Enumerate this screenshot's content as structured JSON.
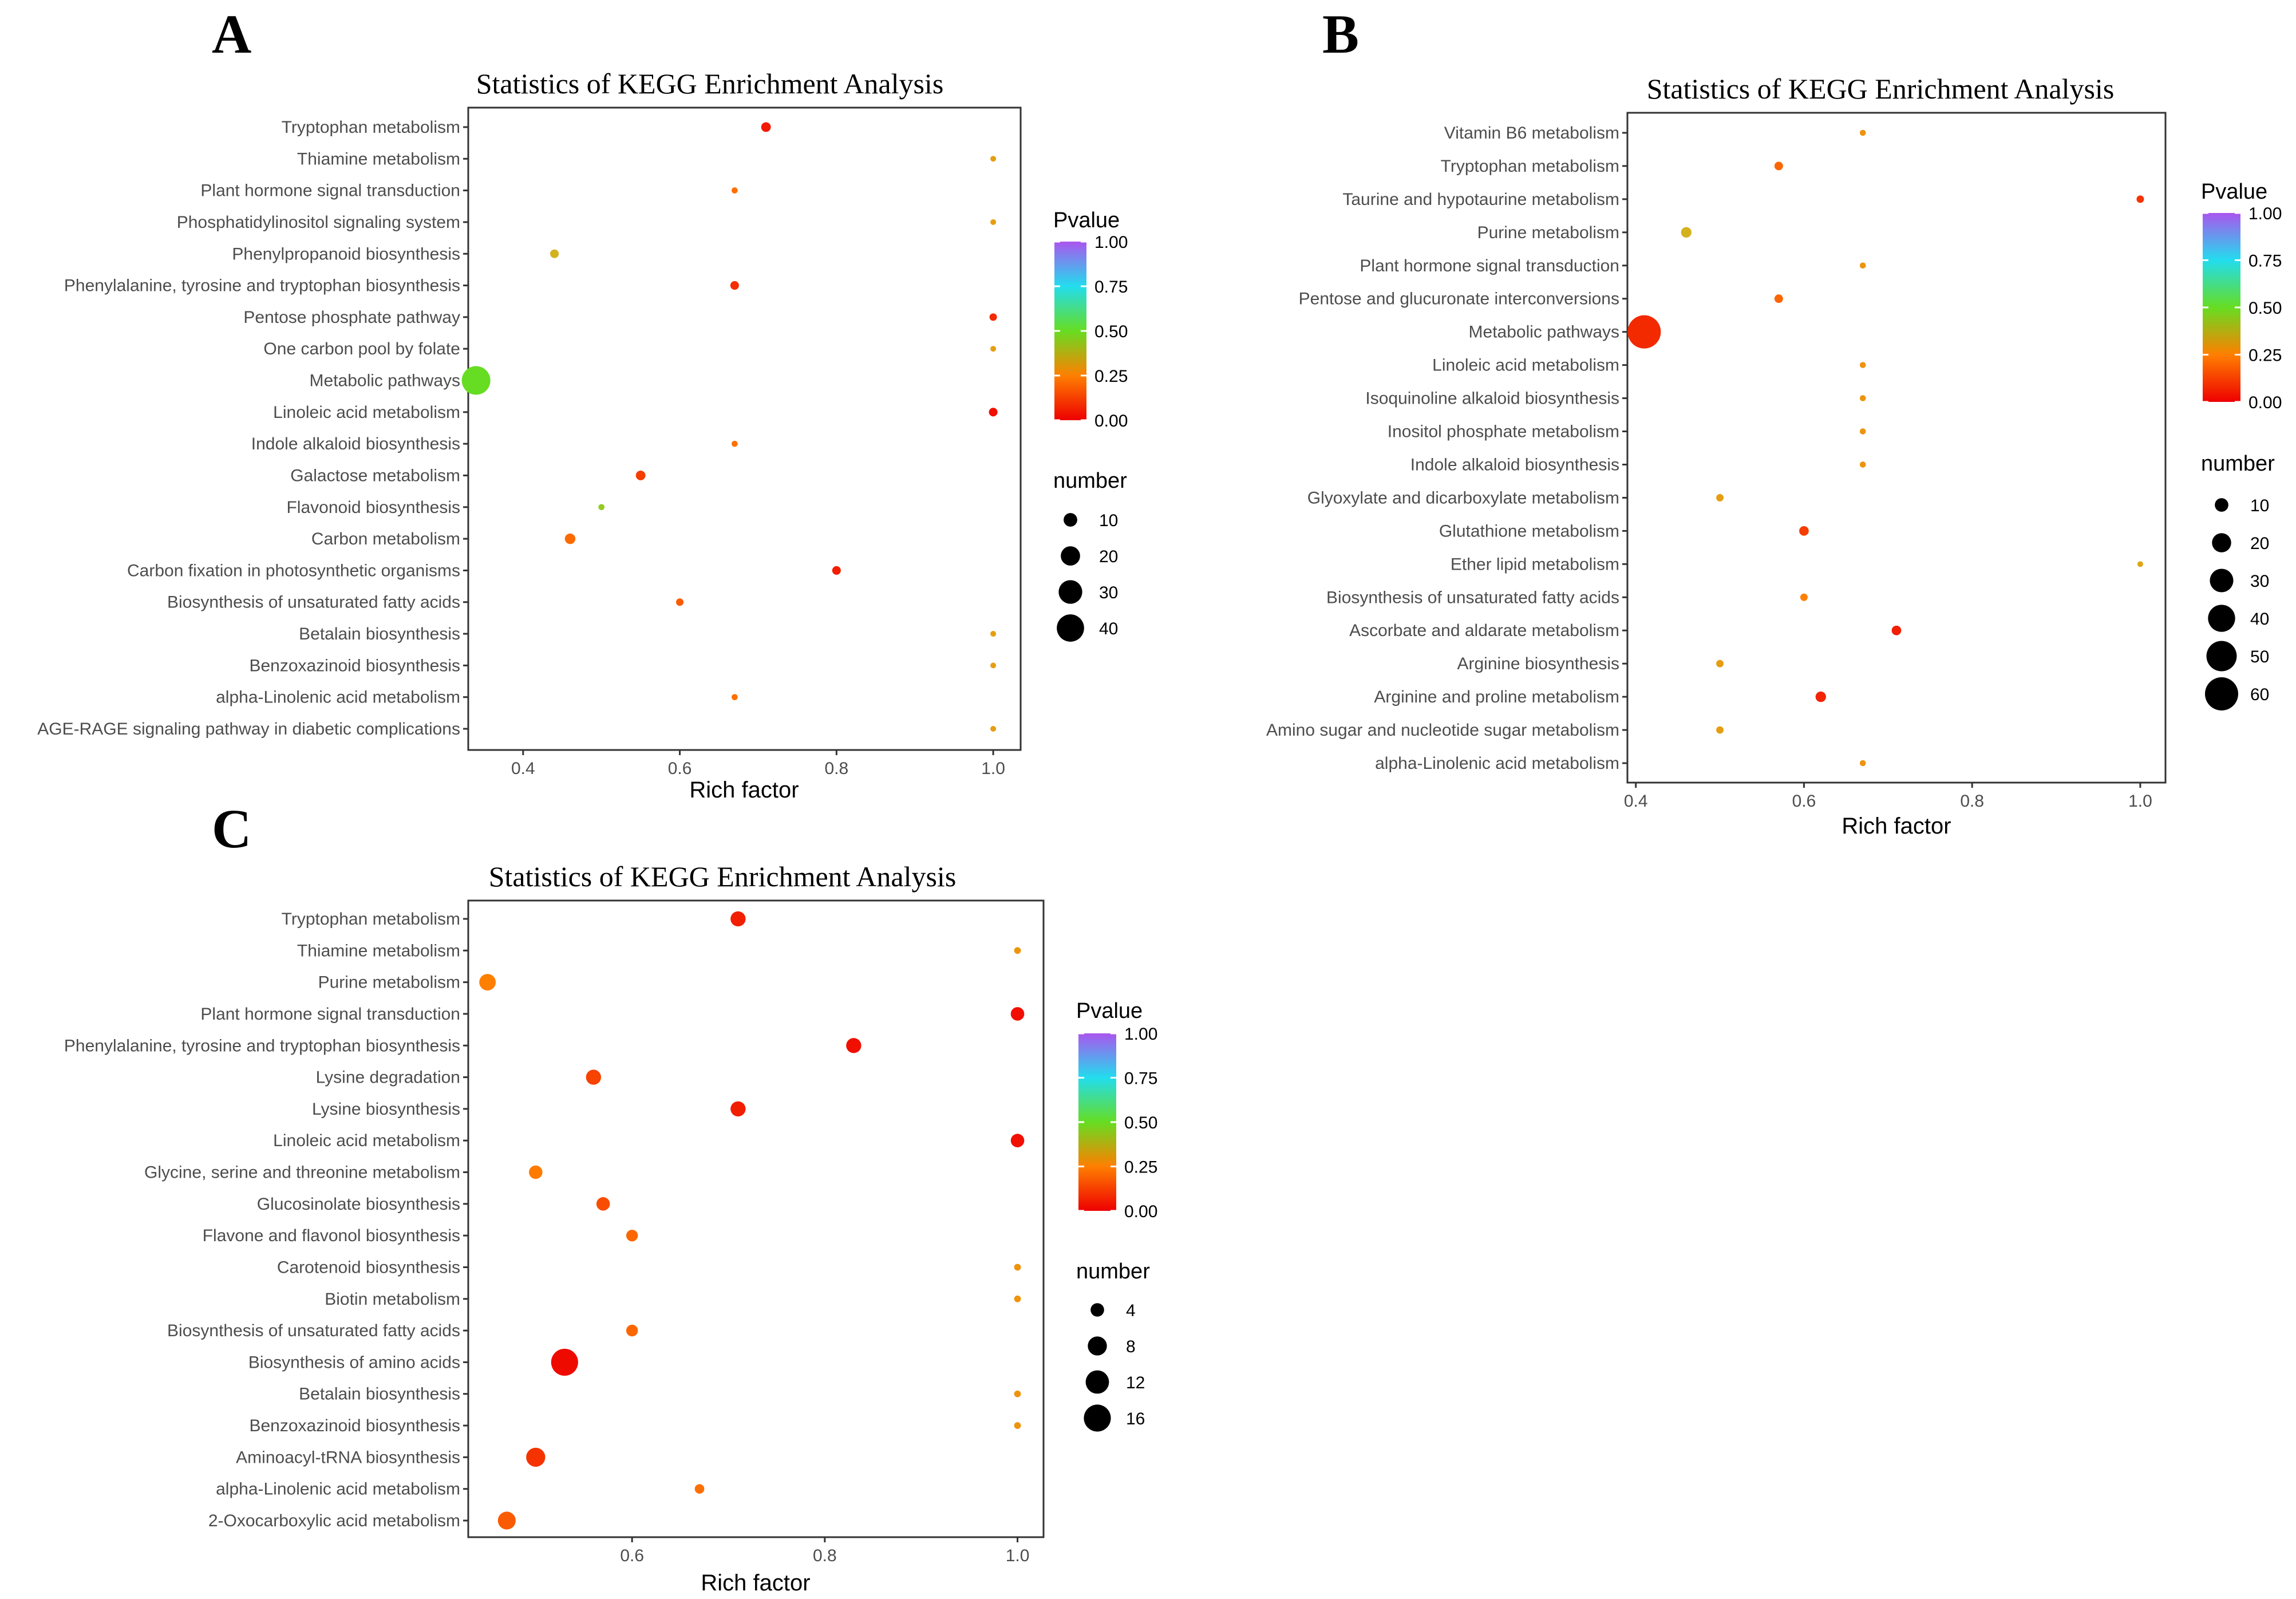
{
  "colors": {
    "low": "#ee0000",
    "mid_low": "#ff7f00",
    "mid": "#d4b21e",
    "green": "#66dd22",
    "cyan": "#22ddee",
    "blue": "#5577ff",
    "high": "#aa55ee"
  },
  "chart_data": [
    {
      "panel": "A",
      "type": "scatter",
      "title": "Statistics of KEGG Enrichment Analysis",
      "xlabel": "Rich factor",
      "ylabel": "",
      "xlim": [
        0.33,
        1.035
      ],
      "xticks": [
        "0.4",
        "0.6",
        "0.8",
        "1.0"
      ],
      "legend_color_title": "Pvalue",
      "legend_color_ticks": [
        "1.00",
        "0.75",
        "0.50",
        "0.25",
        "0.00"
      ],
      "legend_size_title": "number",
      "legend_size_ticks": [
        "10",
        "20",
        "30",
        "40"
      ],
      "size_max": 44,
      "points": [
        {
          "term": "Tryptophan metabolism",
          "rich_factor": 0.71,
          "number": 5,
          "pvalue": 0.05
        },
        {
          "term": "Thiamine metabolism",
          "rich_factor": 1.0,
          "number": 1,
          "pvalue": 0.33
        },
        {
          "term": "Plant hormone signal transduction",
          "rich_factor": 0.67,
          "number": 2,
          "pvalue": 0.22
        },
        {
          "term": "Phosphatidylinositol signaling system",
          "rich_factor": 1.0,
          "number": 1,
          "pvalue": 0.33
        },
        {
          "term": "Phenylpropanoid biosynthesis",
          "rich_factor": 0.44,
          "number": 4,
          "pvalue": 0.38
        },
        {
          "term": "Phenylalanine, tyrosine and tryptophan biosynthesis",
          "rich_factor": 0.67,
          "number": 4,
          "pvalue": 0.09
        },
        {
          "term": "Pentose phosphate pathway",
          "rich_factor": 1.0,
          "number": 3,
          "pvalue": 0.08
        },
        {
          "term": "One carbon pool by folate",
          "rich_factor": 1.0,
          "number": 1,
          "pvalue": 0.33
        },
        {
          "term": "Metabolic pathways",
          "rich_factor": 0.34,
          "number": 44,
          "pvalue": 0.5
        },
        {
          "term": "Linoleic acid metabolism",
          "rich_factor": 1.0,
          "number": 4,
          "pvalue": 0.03
        },
        {
          "term": "Indole alkaloid biosynthesis",
          "rich_factor": 0.67,
          "number": 2,
          "pvalue": 0.22
        },
        {
          "term": "Galactose metabolism",
          "rich_factor": 0.55,
          "number": 5,
          "pvalue": 0.12
        },
        {
          "term": "Flavonoid biosynthesis",
          "rich_factor": 0.5,
          "number": 2,
          "pvalue": 0.45
        },
        {
          "term": "Carbon metabolism",
          "rich_factor": 0.46,
          "number": 6,
          "pvalue": 0.21
        },
        {
          "term": "Carbon fixation in photosynthetic organisms",
          "rich_factor": 0.8,
          "number": 4,
          "pvalue": 0.06
        },
        {
          "term": "Biosynthesis of unsaturated fatty acids",
          "rich_factor": 0.6,
          "number": 3,
          "pvalue": 0.18
        },
        {
          "term": "Betalain biosynthesis",
          "rich_factor": 1.0,
          "number": 1,
          "pvalue": 0.33
        },
        {
          "term": "Benzoxazinoid biosynthesis",
          "rich_factor": 1.0,
          "number": 1,
          "pvalue": 0.33
        },
        {
          "term": "alpha-Linolenic acid metabolism",
          "rich_factor": 0.67,
          "number": 2,
          "pvalue": 0.22
        },
        {
          "term": "AGE-RAGE signaling pathway in diabetic complications",
          "rich_factor": 1.0,
          "number": 1,
          "pvalue": 0.33
        }
      ]
    },
    {
      "panel": "B",
      "type": "scatter",
      "title": "Statistics of KEGG Enrichment Analysis",
      "xlabel": "Rich factor",
      "ylabel": "",
      "xlim": [
        0.39,
        1.03
      ],
      "xticks": [
        "0.4",
        "0.6",
        "0.8",
        "1.0"
      ],
      "legend_color_title": "Pvalue",
      "legend_color_ticks": [
        "1.00",
        "0.75",
        "0.50",
        "0.25",
        "0.00"
      ],
      "legend_size_title": "number",
      "legend_size_ticks": [
        "10",
        "20",
        "30",
        "40",
        "50",
        "60"
      ],
      "size_max": 60,
      "points": [
        {
          "term": "Vitamin B6 metabolism",
          "rich_factor": 0.67,
          "number": 2,
          "pvalue": 0.3
        },
        {
          "term": "Tryptophan metabolism",
          "rich_factor": 0.57,
          "number": 4,
          "pvalue": 0.2
        },
        {
          "term": "Taurine and hypotaurine metabolism",
          "rich_factor": 1.0,
          "number": 3,
          "pvalue": 0.1
        },
        {
          "term": "Purine metabolism",
          "rich_factor": 0.46,
          "number": 6,
          "pvalue": 0.38
        },
        {
          "term": "Plant hormone signal transduction",
          "rich_factor": 0.67,
          "number": 2,
          "pvalue": 0.3
        },
        {
          "term": "Pentose and glucuronate interconversions",
          "rich_factor": 0.57,
          "number": 4,
          "pvalue": 0.2
        },
        {
          "term": "Metabolic pathways",
          "rich_factor": 0.41,
          "number": 60,
          "pvalue": 0.08
        },
        {
          "term": "Linoleic acid metabolism",
          "rich_factor": 0.67,
          "number": 2,
          "pvalue": 0.3
        },
        {
          "term": "Isoquinoline alkaloid biosynthesis",
          "rich_factor": 0.67,
          "number": 2,
          "pvalue": 0.3
        },
        {
          "term": "Inositol phosphate metabolism",
          "rich_factor": 0.67,
          "number": 2,
          "pvalue": 0.3
        },
        {
          "term": "Indole alkaloid biosynthesis",
          "rich_factor": 0.67,
          "number": 2,
          "pvalue": 0.3
        },
        {
          "term": "Glyoxylate and dicarboxylate metabolism",
          "rich_factor": 0.5,
          "number": 3,
          "pvalue": 0.33
        },
        {
          "term": "Glutathione metabolism",
          "rich_factor": 0.6,
          "number": 5,
          "pvalue": 0.12
        },
        {
          "term": "Ether lipid metabolism",
          "rich_factor": 1.0,
          "number": 1,
          "pvalue": 0.35
        },
        {
          "term": "Biosynthesis of unsaturated fatty acids",
          "rich_factor": 0.6,
          "number": 3,
          "pvalue": 0.25
        },
        {
          "term": "Ascorbate and aldarate metabolism",
          "rich_factor": 0.71,
          "number": 5,
          "pvalue": 0.06
        },
        {
          "term": "Arginine biosynthesis",
          "rich_factor": 0.5,
          "number": 3,
          "pvalue": 0.33
        },
        {
          "term": "Arginine and proline metabolism",
          "rich_factor": 0.62,
          "number": 6,
          "pvalue": 0.07
        },
        {
          "term": "Amino sugar and nucleotide sugar metabolism",
          "rich_factor": 0.5,
          "number": 3,
          "pvalue": 0.33
        },
        {
          "term": "alpha-Linolenic acid metabolism",
          "rich_factor": 0.67,
          "number": 2,
          "pvalue": 0.3
        }
      ]
    },
    {
      "panel": "C",
      "type": "scatter",
      "title": "Statistics of KEGG Enrichment Analysis",
      "xlabel": "Rich factor",
      "ylabel": "",
      "xlim": [
        0.43,
        1.027
      ],
      "xticks": [
        "0.6",
        "0.8",
        "1.0"
      ],
      "legend_color_title": "Pvalue",
      "legend_color_ticks": [
        "1.00",
        "0.75",
        "0.50",
        "0.25",
        "0.00"
      ],
      "legend_size_title": "number",
      "legend_size_ticks": [
        "4",
        "8",
        "12",
        "16"
      ],
      "size_max": 18,
      "points": [
        {
          "term": "Tryptophan metabolism",
          "rich_factor": 0.71,
          "number": 5,
          "pvalue": 0.06
        },
        {
          "term": "Thiamine metabolism",
          "rich_factor": 1.0,
          "number": 1,
          "pvalue": 0.3
        },
        {
          "term": "Purine metabolism",
          "rich_factor": 0.45,
          "number": 6,
          "pvalue": 0.25
        },
        {
          "term": "Plant hormone signal transduction",
          "rich_factor": 1.0,
          "number": 4,
          "pvalue": 0.03
        },
        {
          "term": "Phenylalanine, tyrosine and tryptophan biosynthesis",
          "rich_factor": 0.83,
          "number": 5,
          "pvalue": 0.03
        },
        {
          "term": "Lysine degradation",
          "rich_factor": 0.56,
          "number": 5,
          "pvalue": 0.13
        },
        {
          "term": "Lysine biosynthesis",
          "rich_factor": 0.71,
          "number": 5,
          "pvalue": 0.06
        },
        {
          "term": "Linoleic acid metabolism",
          "rich_factor": 1.0,
          "number": 4,
          "pvalue": 0.03
        },
        {
          "term": "Glycine, serine and threonine metabolism",
          "rich_factor": 0.5,
          "number": 4,
          "pvalue": 0.24
        },
        {
          "term": "Glucosinolate biosynthesis",
          "rich_factor": 0.57,
          "number": 4,
          "pvalue": 0.15
        },
        {
          "term": "Flavone and flavonol biosynthesis",
          "rich_factor": 0.6,
          "number": 3,
          "pvalue": 0.2
        },
        {
          "term": "Carotenoid biosynthesis",
          "rich_factor": 1.0,
          "number": 1,
          "pvalue": 0.3
        },
        {
          "term": "Biotin metabolism",
          "rich_factor": 1.0,
          "number": 1,
          "pvalue": 0.3
        },
        {
          "term": "Biosynthesis of unsaturated fatty acids",
          "rich_factor": 0.6,
          "number": 3,
          "pvalue": 0.2
        },
        {
          "term": "Biosynthesis of amino acids",
          "rich_factor": 0.53,
          "number": 16,
          "pvalue": 0.02
        },
        {
          "term": "Betalain biosynthesis",
          "rich_factor": 1.0,
          "number": 1,
          "pvalue": 0.3
        },
        {
          "term": "Benzoxazinoid biosynthesis",
          "rich_factor": 1.0,
          "number": 1,
          "pvalue": 0.3
        },
        {
          "term": "Aminoacyl-tRNA biosynthesis",
          "rich_factor": 0.5,
          "number": 8,
          "pvalue": 0.1
        },
        {
          "term": "alpha-Linolenic acid metabolism",
          "rich_factor": 0.67,
          "number": 2,
          "pvalue": 0.22
        },
        {
          "term": "2-Oxocarboxylic acid metabolism",
          "rich_factor": 0.47,
          "number": 7,
          "pvalue": 0.18
        }
      ]
    }
  ]
}
